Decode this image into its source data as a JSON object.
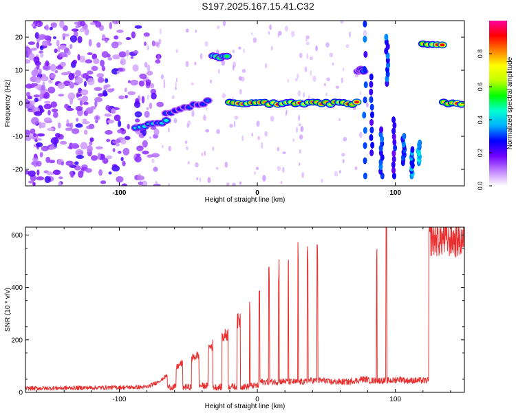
{
  "title": "S197.2025.167.15.41.C32",
  "chart_data": [
    {
      "type": "heatmap",
      "xlabel": "Height of straight line (km)",
      "ylabel": "Frequency (Hz)",
      "xlim": [
        -168,
        150
      ],
      "ylim": [
        -25,
        25
      ],
      "xticks": [
        -100,
        0,
        100
      ],
      "yticks": [
        -20,
        -10,
        0,
        10,
        20
      ],
      "colorbar": {
        "label": "Normalized spectral amplitude",
        "range": [
          0,
          1
        ],
        "ticks": [
          "0.0",
          "0.2",
          "0.4",
          "0.6",
          "0.8"
        ],
        "colors": [
          "#ffffff",
          "#c080ff",
          "#7000ff",
          "#0000ff",
          "#00b0ff",
          "#00ffd0",
          "#00ff00",
          "#c0ff00",
          "#ffff00",
          "#ff8000",
          "#ff0000",
          "#ff00a0"
        ]
      },
      "noise_region_x": [
        -168,
        -80
      ],
      "features": [
        {
          "x_start": -88,
          "x_end": -66,
          "freq_start": -7.5,
          "freq_end": -5.5,
          "amp": 0.45
        },
        {
          "x_start": -66,
          "x_end": -36,
          "freq_start": -3,
          "freq_end": 0.5,
          "amp": 0.35
        },
        {
          "x_start": -32,
          "x_end": -22,
          "freq_start": 14,
          "freq_end": 14,
          "amp": 0.6
        },
        {
          "x_start": -20,
          "x_end": 72,
          "freq_start": 0,
          "freq_end": 0,
          "amp": 0.95
        },
        {
          "x_start": 73,
          "x_end": 77,
          "freq_start": 10,
          "freq_end": 10,
          "amp": 0.4
        },
        {
          "x_start": 120,
          "x_end": 134,
          "freq_start": 18,
          "freq_end": 18,
          "amp": 0.95
        },
        {
          "x_start": 135,
          "x_end": 148,
          "freq_start": 0,
          "freq_end": 0,
          "amp": 0.95
        }
      ]
    },
    {
      "type": "line",
      "xlabel": "Height of straight line (km)",
      "ylabel": "SNR (10 * v/v)",
      "xlim": [
        -168,
        150
      ],
      "ylim": [
        0,
        630
      ],
      "xticks": [
        -100,
        0,
        100
      ],
      "yticks": [
        0,
        200,
        400,
        600
      ],
      "color": "#e83030",
      "trend": [
        [
          -168,
          15
        ],
        [
          -80,
          20
        ],
        [
          -70,
          45
        ],
        [
          -55,
          110
        ],
        [
          -40,
          150
        ],
        [
          -20,
          230
        ],
        [
          -5,
          330
        ],
        [
          5,
          420
        ],
        [
          20,
          500
        ],
        [
          40,
          560
        ],
        [
          60,
          550
        ],
        [
          80,
          570
        ],
        [
          100,
          580
        ],
        [
          120,
          590
        ],
        [
          150,
          580
        ]
      ],
      "dropouts": [
        [
          -62,
          20
        ],
        [
          -51,
          20
        ],
        [
          -39,
          25
        ],
        [
          -29,
          20
        ],
        [
          -18,
          22
        ],
        [
          -9,
          22
        ],
        [
          -2,
          25
        ],
        [
          5,
          40
        ],
        [
          12,
          40
        ],
        [
          19,
          42
        ],
        [
          26,
          40
        ],
        [
          33,
          40
        ],
        [
          40,
          45
        ],
        [
          47,
          45
        ],
        [
          53,
          40
        ],
        [
          59,
          40
        ],
        [
          65,
          40
        ],
        [
          71,
          45
        ],
        [
          77,
          50
        ],
        [
          83,
          45
        ],
        [
          90,
          45
        ],
        [
          97,
          45
        ],
        [
          103,
          50
        ],
        [
          109,
          45
        ],
        [
          115,
          45
        ],
        [
          121,
          45
        ]
      ]
    }
  ]
}
